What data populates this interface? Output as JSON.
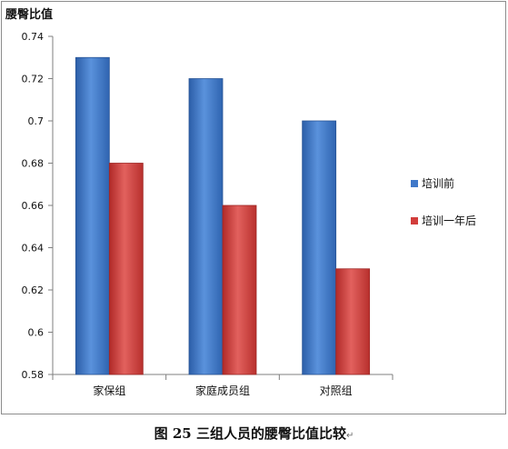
{
  "chart_data": {
    "type": "bar",
    "title": "腰臀比值",
    "categories": [
      "家保组",
      "家庭成员组",
      "对照组"
    ],
    "series": [
      {
        "name": "培训前",
        "values": [
          0.73,
          0.72,
          0.7
        ],
        "color": "#3f78c9"
      },
      {
        "name": "培训一年后",
        "values": [
          0.68,
          0.66,
          0.63
        ],
        "color": "#d23d3b"
      }
    ],
    "ylim": [
      0.58,
      0.74
    ],
    "yticks": [
      "0.74",
      "0.72",
      "0.7",
      "0.68",
      "0.66",
      "0.64",
      "0.62",
      "0.6",
      "0.58"
    ],
    "xlabel": "",
    "ylabel": "",
    "grid": false,
    "legend_position": "right"
  },
  "caption": {
    "text": "图 25  三组人员的腰臀比值比较",
    "mark": "↵"
  }
}
